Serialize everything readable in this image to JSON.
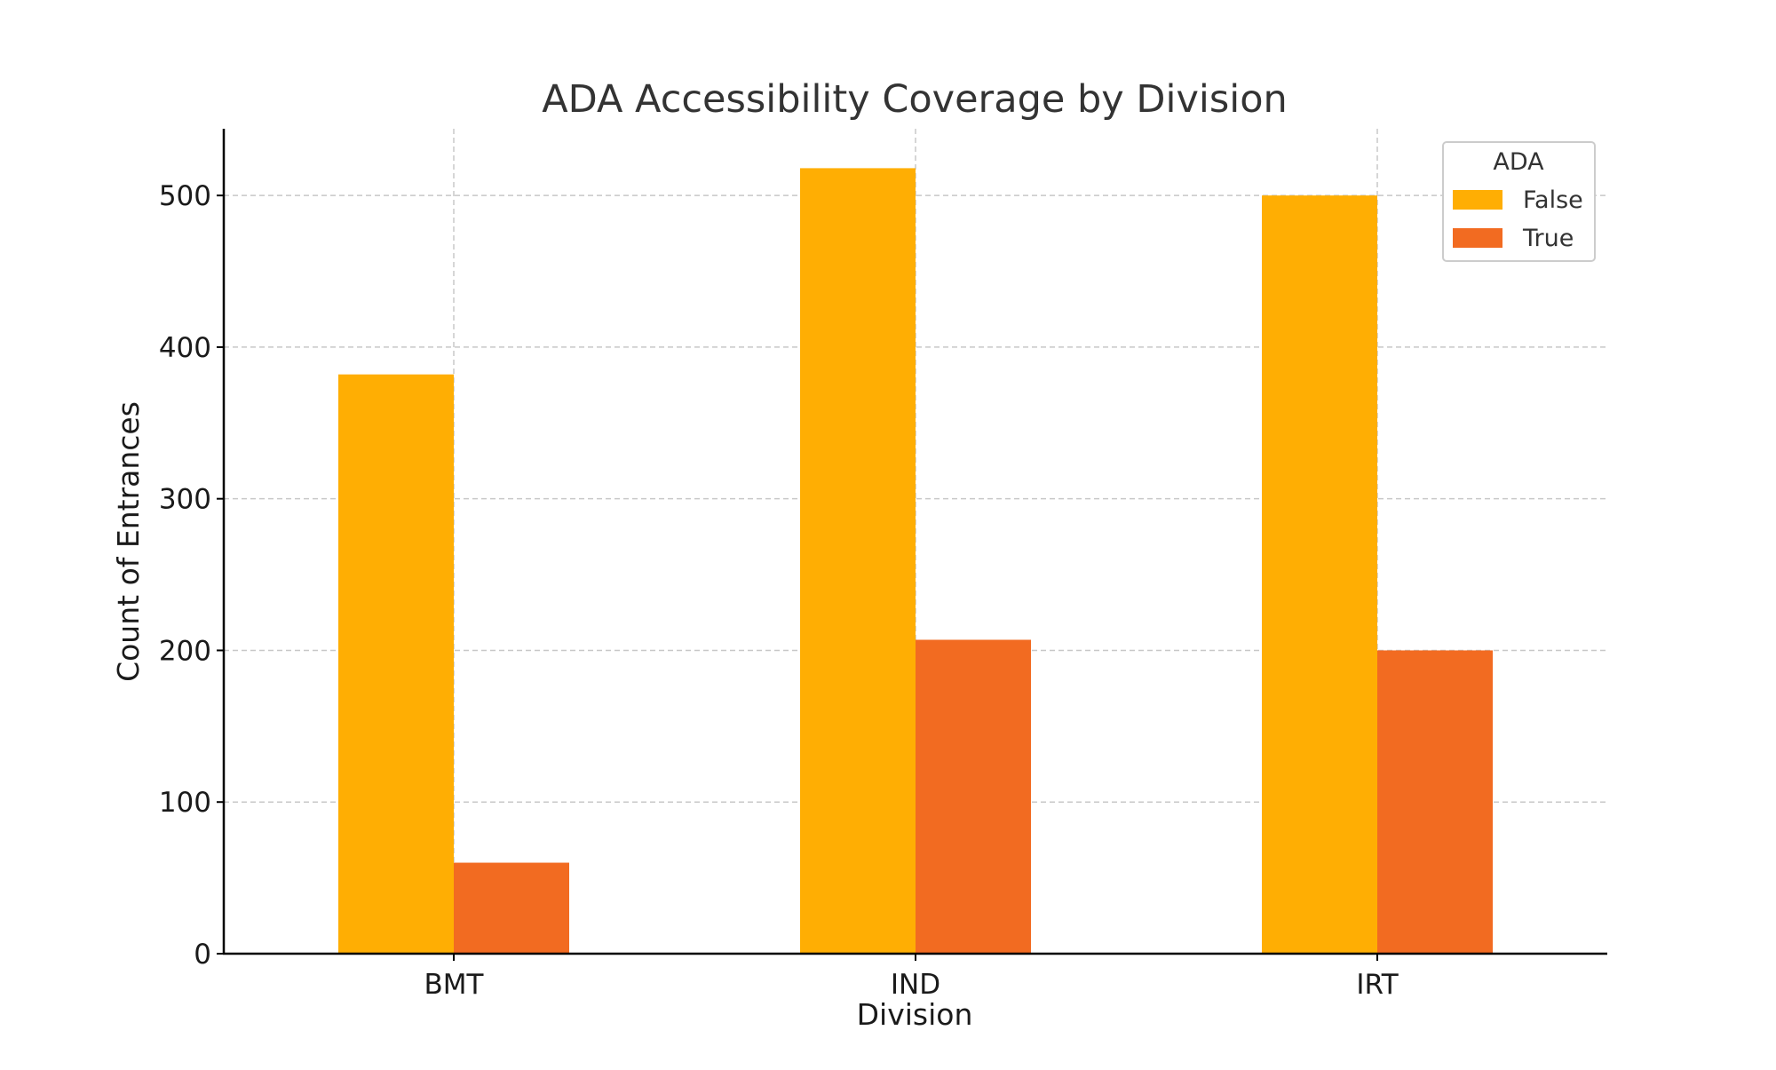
{
  "chart_data": {
    "type": "bar",
    "title": "ADA Accessibility Coverage by Division",
    "xlabel": "Division",
    "ylabel": "Count of Entrances",
    "categories": [
      "BMT",
      "IND",
      "IRT"
    ],
    "yticks": [
      0,
      100,
      200,
      300,
      400,
      500
    ],
    "ylim": [
      0,
      544
    ],
    "grid": true,
    "legend": {
      "title": "ADA",
      "placement": "top-right"
    },
    "series": [
      {
        "name": "False",
        "color": "#FFAE03",
        "values": [
          382,
          518,
          500
        ]
      },
      {
        "name": "True",
        "color": "#F26B21",
        "values": [
          60,
          207,
          200
        ]
      }
    ]
  }
}
